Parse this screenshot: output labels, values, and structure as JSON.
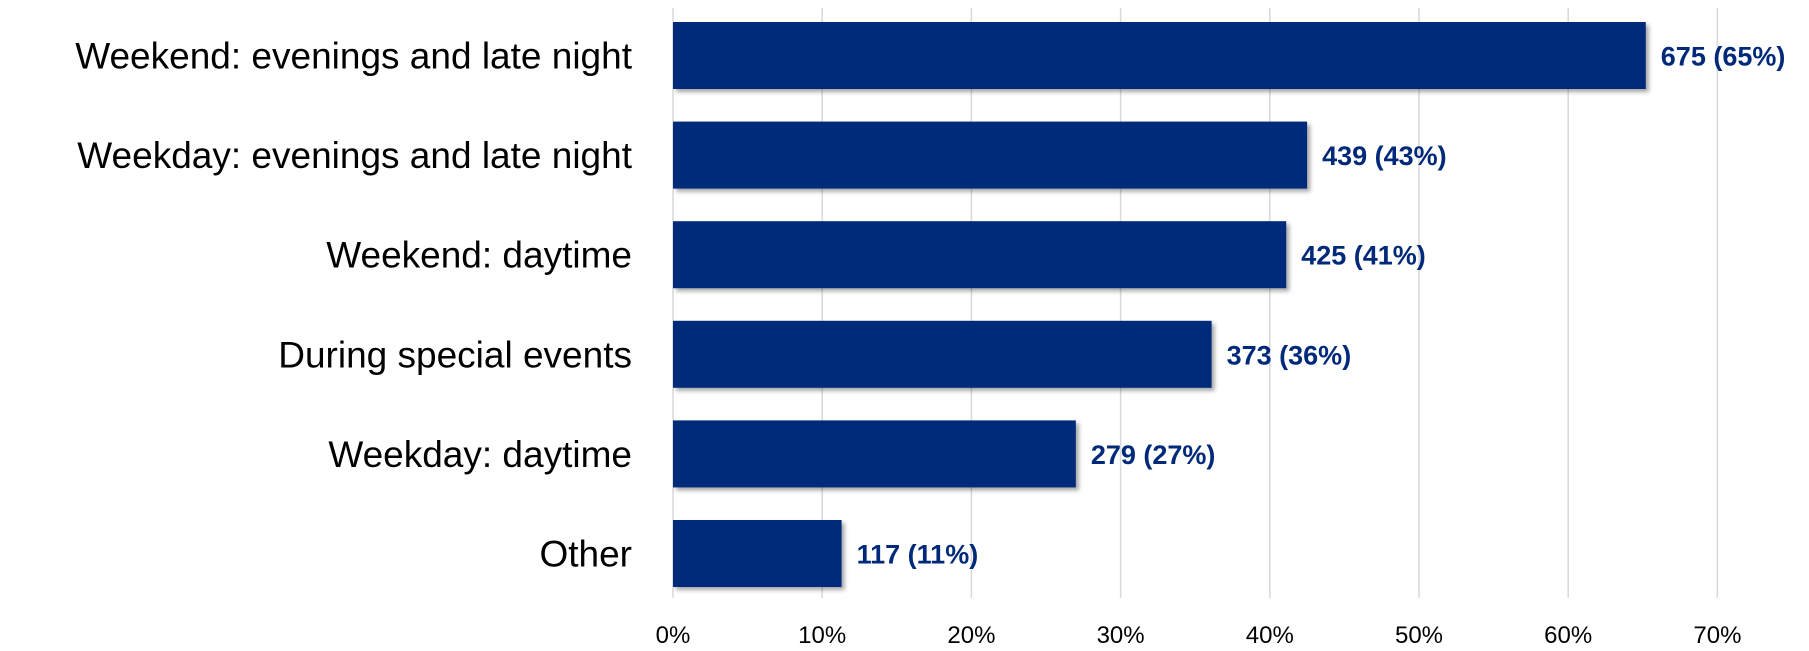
{
  "chart_data": {
    "type": "bar",
    "orientation": "horizontal",
    "title": "",
    "xlabel": "",
    "ylabel": "",
    "xlim": [
      0,
      70
    ],
    "x_ticks": [
      "0%",
      "10%",
      "20%",
      "30%",
      "40%",
      "50%",
      "60%",
      "70%"
    ],
    "x_tick_values": [
      0,
      10,
      20,
      30,
      40,
      50,
      60,
      70
    ],
    "grid": "vertical",
    "legend": "none",
    "bar_color": "#00297A",
    "label_color": "#00297A",
    "categories": [
      "Weekend: evenings and late night",
      "Weekday: evenings and late night",
      "Weekend: daytime",
      "During special events",
      "Weekday: daytime",
      "Other"
    ],
    "counts": [
      675,
      439,
      425,
      373,
      279,
      117
    ],
    "values": [
      65.2,
      42.5,
      41.1,
      36.1,
      27.0,
      11.3
    ],
    "data_labels": [
      "675 (65%)",
      "439 (43%)",
      "425 (41%)",
      "373 (36%)",
      "279 (27%)",
      "117 (11%)"
    ]
  }
}
